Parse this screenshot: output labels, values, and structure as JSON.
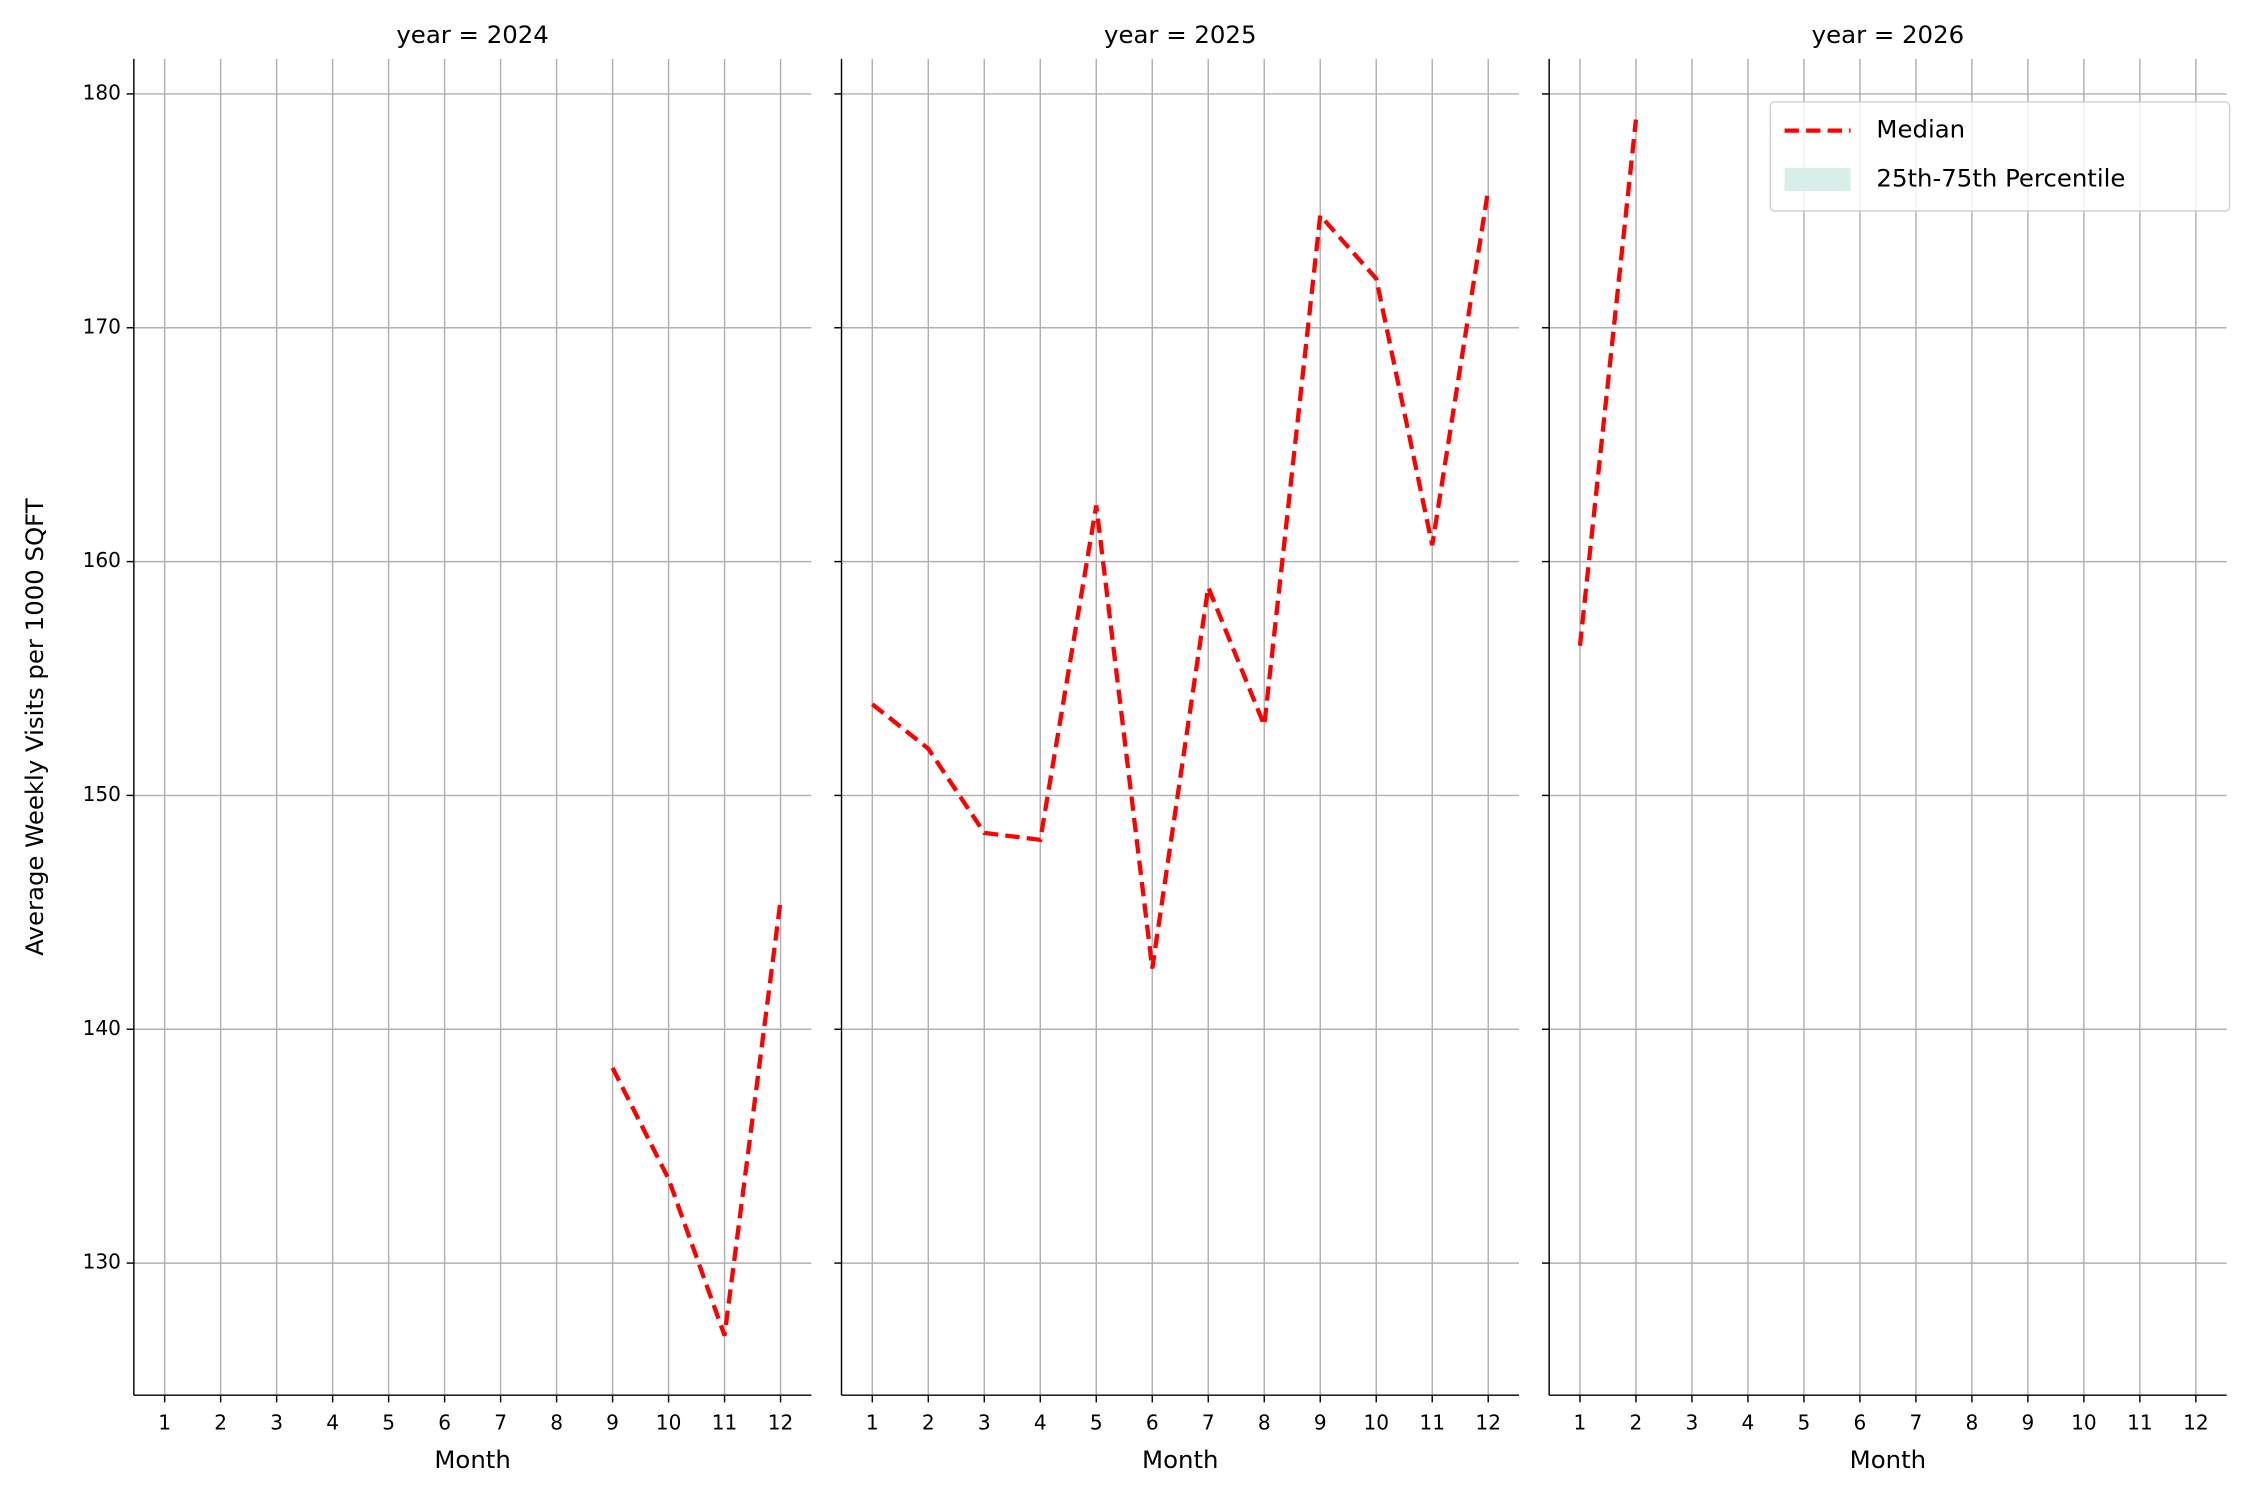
{
  "chart_data": [
    {
      "type": "line",
      "title": "year = 2024",
      "x_label": "Month",
      "y_label": "Average Weekly Visits per 1000 SQFT",
      "x": [
        9,
        10,
        11,
        12
      ],
      "series": [
        {
          "name": "Median",
          "color": "#ff0000",
          "values": [
            138.35,
            133.6,
            126.9,
            145.5
          ]
        }
      ],
      "xlim": [
        0.45,
        12.55
      ],
      "xticks": [
        1,
        2,
        3,
        4,
        5,
        6,
        7,
        8,
        9,
        10,
        11,
        12
      ],
      "ylim": [
        124.35,
        181.5
      ],
      "yticks": [
        130,
        140,
        150,
        160,
        170,
        180
      ],
      "grid": true
    },
    {
      "type": "line",
      "title": "year = 2025",
      "x_label": "Month",
      "x": [
        1,
        2,
        3,
        4,
        5,
        6,
        7,
        8,
        9,
        10,
        11,
        12
      ],
      "series": [
        {
          "name": "Median",
          "color": "#ff0000",
          "values": [
            153.9,
            152.0,
            148.4,
            148.1,
            162.4,
            142.6,
            158.9,
            153.0,
            174.8,
            172.1,
            160.7,
            175.9
          ]
        }
      ],
      "xlim": [
        0.45,
        12.55
      ],
      "xticks": [
        1,
        2,
        3,
        4,
        5,
        6,
        7,
        8,
        9,
        10,
        11,
        12
      ],
      "ylim": [
        124.35,
        181.5
      ],
      "yticks": [
        130,
        140,
        150,
        160,
        170,
        180
      ],
      "grid": true
    },
    {
      "type": "line",
      "title": "year = 2026",
      "x_label": "Month",
      "x": [
        1,
        2
      ],
      "series": [
        {
          "name": "Median",
          "color": "#ff0000",
          "values": [
            156.4,
            178.9
          ]
        },
        {
          "name": "25th-75th Percentile",
          "color": "#d8eee8",
          "values": [
            null,
            null
          ]
        }
      ],
      "xlim": [
        0.45,
        12.55
      ],
      "xticks": [
        1,
        2,
        3,
        4,
        5,
        6,
        7,
        8,
        9,
        10,
        11,
        12
      ],
      "ylim": [
        124.35,
        181.5
      ],
      "yticks": [
        130,
        140,
        150,
        160,
        170,
        180
      ],
      "grid": true,
      "legend": "upper right"
    }
  ]
}
